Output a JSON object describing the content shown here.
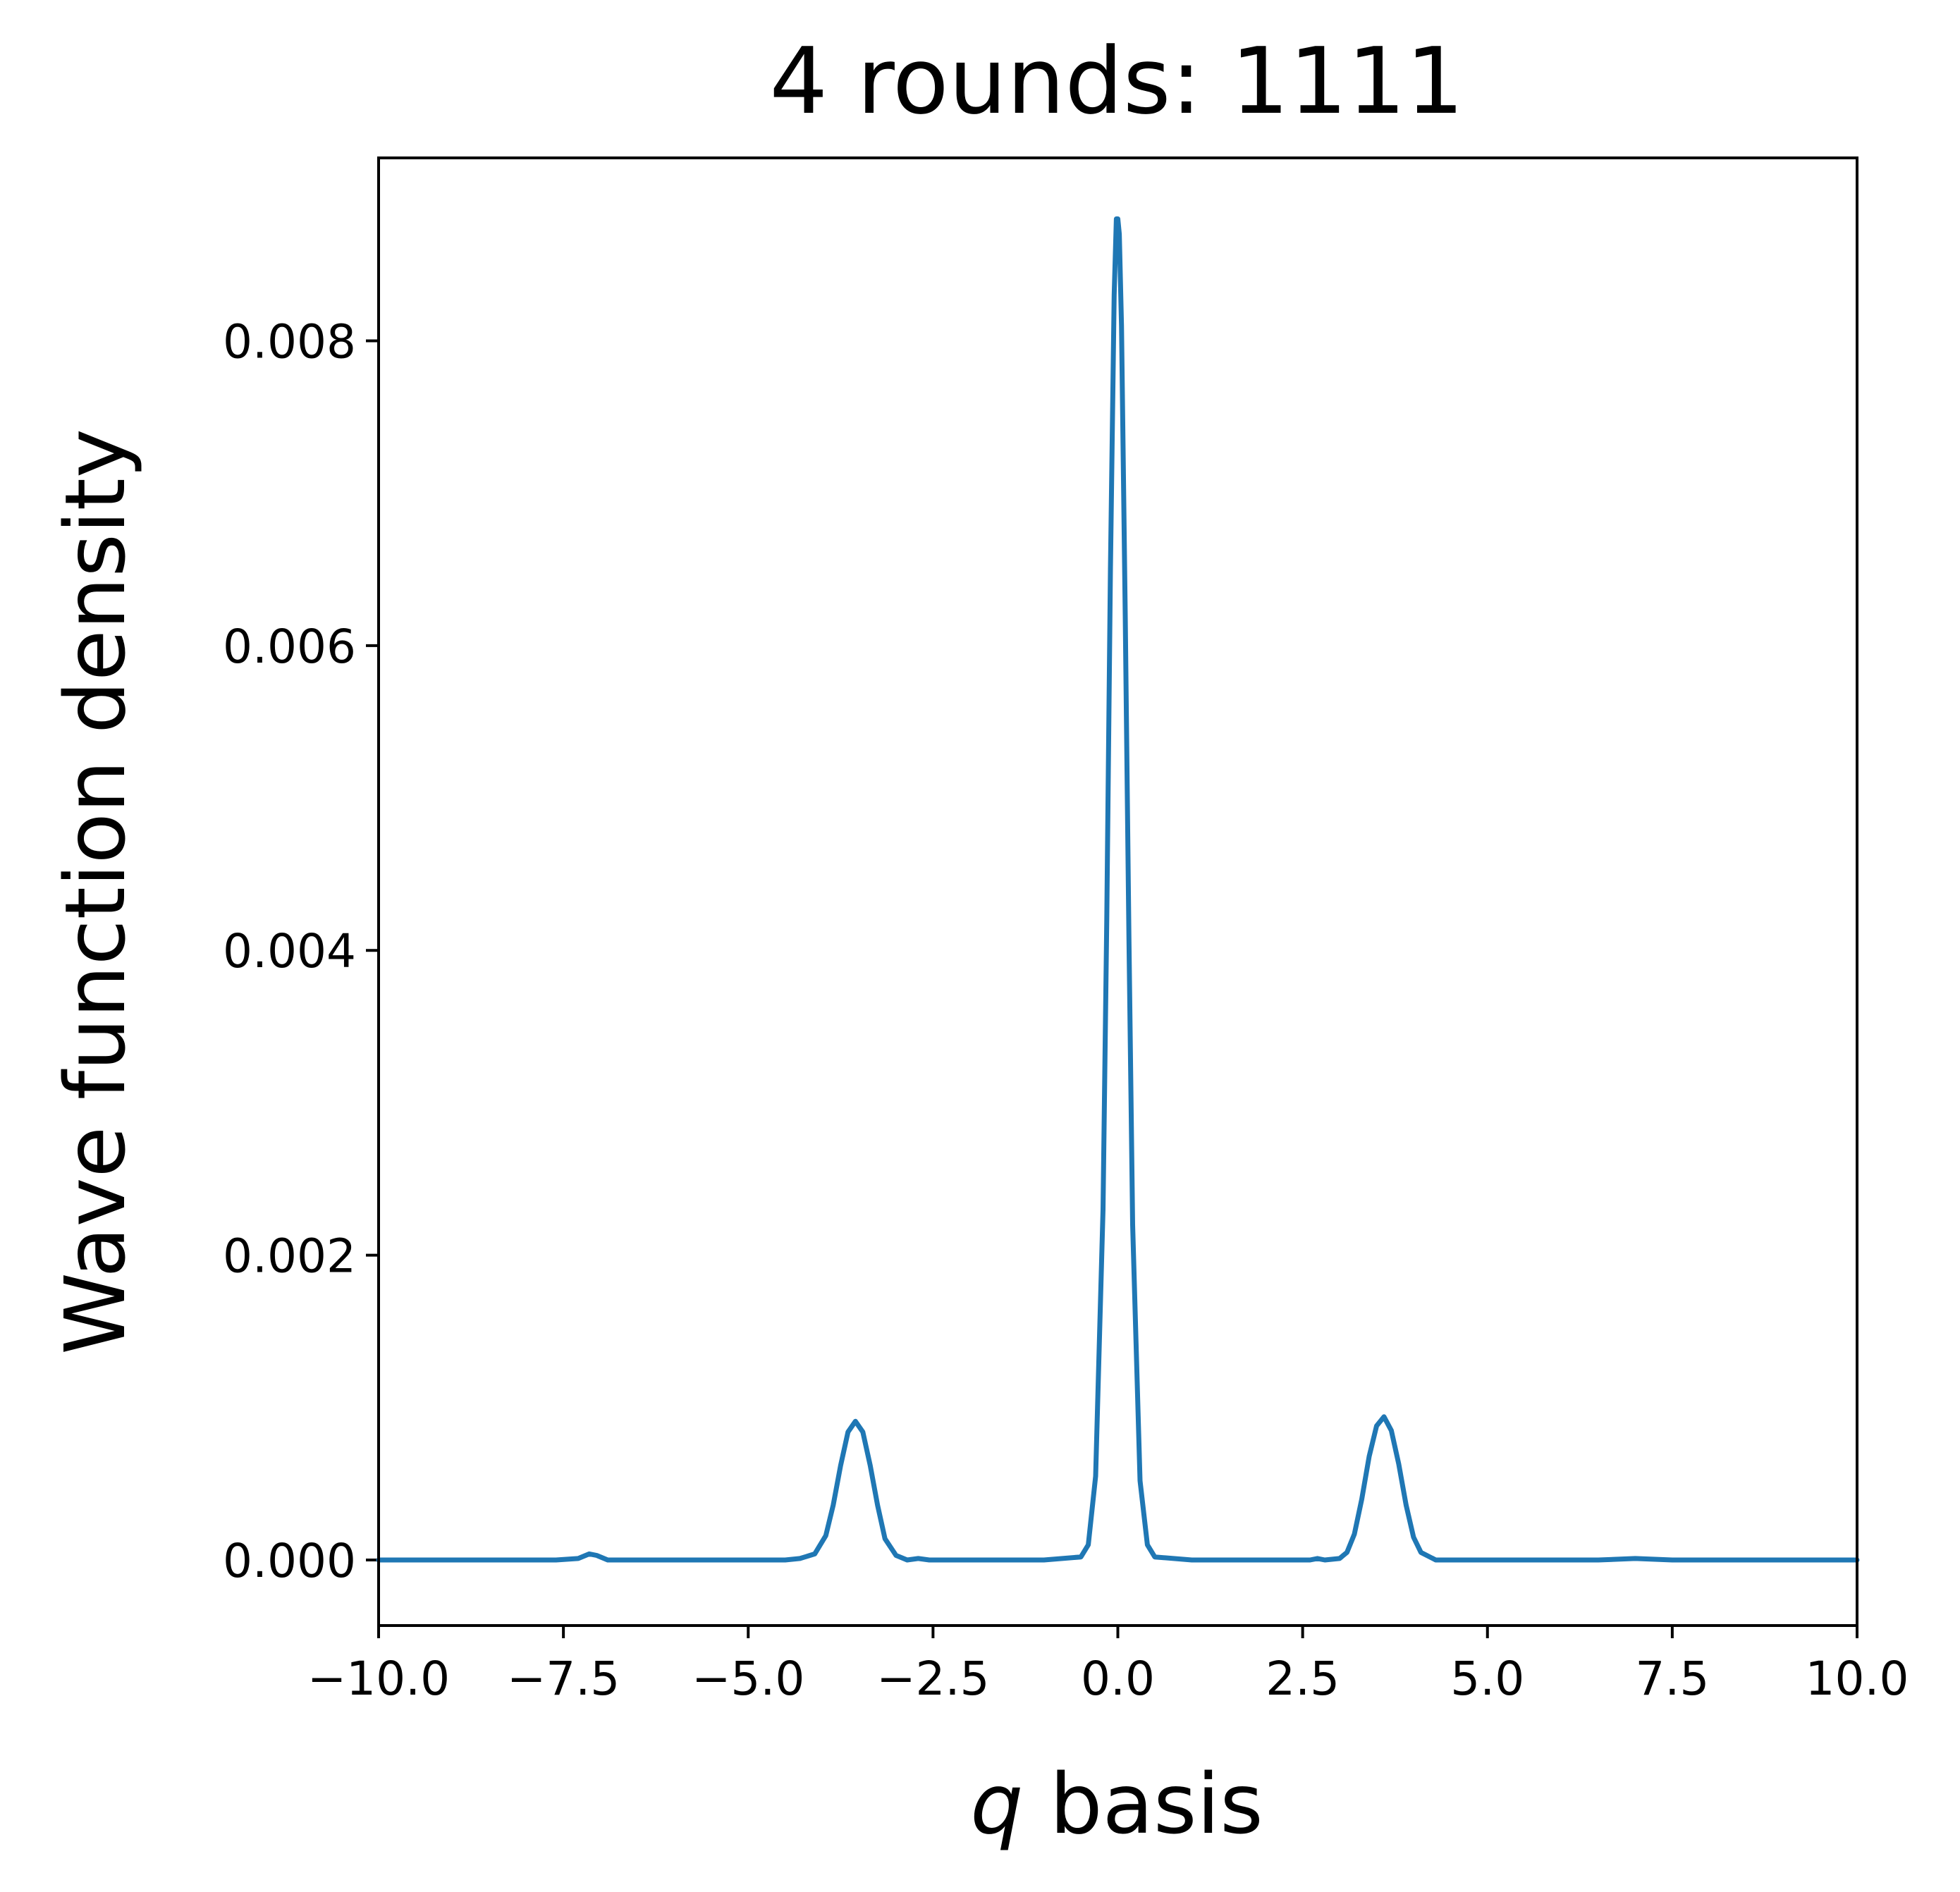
{
  "chart_data": {
    "type": "line",
    "title": "4 rounds: 1111",
    "xlabel_var": "q",
    "xlabel_rest": " basis",
    "ylabel": "Wave function density",
    "xlim": [
      -10.0,
      10.0
    ],
    "ylim": [
      -0.00043,
      0.0092
    ],
    "xticks": [
      -10.0,
      -7.5,
      -5.0,
      -2.5,
      0.0,
      2.5,
      5.0,
      7.5,
      10.0
    ],
    "xtick_labels": [
      "−10.0",
      "−7.5",
      "−5.0",
      "−2.5",
      "0.0",
      "2.5",
      "5.0",
      "7.5",
      "10.0"
    ],
    "yticks": [
      0.0,
      0.002,
      0.004,
      0.006,
      0.008
    ],
    "ytick_labels": [
      "0.000",
      "0.002",
      "0.004",
      "0.006",
      "0.008"
    ],
    "grid": false,
    "series": [
      {
        "color": "#1f77b4",
        "x": [
          -10.0,
          -7.6,
          -7.3,
          -7.15,
          -7.05,
          -6.9,
          -6.75,
          -6.5,
          -4.5,
          -4.3,
          -4.1,
          -3.95,
          -3.85,
          -3.75,
          -3.65,
          -3.55,
          -3.45,
          -3.35,
          -3.25,
          -3.15,
          -3.0,
          -2.85,
          -2.7,
          -2.55,
          -2.4,
          -2.0,
          -1.0,
          -0.5,
          -0.4,
          -0.3,
          -0.2,
          -0.15,
          -0.1,
          -0.05,
          -0.02,
          0.0,
          0.02,
          0.05,
          0.1,
          0.15,
          0.2,
          0.3,
          0.4,
          0.5,
          1.0,
          2.0,
          2.6,
          2.7,
          2.8,
          3.0,
          3.1,
          3.2,
          3.3,
          3.4,
          3.5,
          3.6,
          3.7,
          3.8,
          3.9,
          4.0,
          4.1,
          4.3,
          5.0,
          6.5,
          7.0,
          7.5,
          10.0
        ],
        "y": [
          0.0,
          0.0,
          1e-05,
          4e-05,
          3e-05,
          0.0,
          0.0,
          0.0,
          0.0,
          1e-05,
          4e-05,
          0.00016,
          0.00036,
          0.00062,
          0.00084,
          0.00091,
          0.00084,
          0.00062,
          0.00036,
          0.00014,
          3e-05,
          0.0,
          1e-05,
          0.0,
          0.0,
          0.0,
          0.0,
          2e-05,
          0.0001,
          0.00055,
          0.0023,
          0.0042,
          0.0065,
          0.0083,
          0.0088,
          0.0088,
          0.0087,
          0.0081,
          0.0062,
          0.0041,
          0.0022,
          0.00052,
          0.0001,
          2e-05,
          0.0,
          0.0,
          0.0,
          1e-05,
          0.0,
          1e-05,
          5e-05,
          0.00017,
          0.0004,
          0.00068,
          0.00088,
          0.00094,
          0.00085,
          0.00063,
          0.00036,
          0.00015,
          5e-05,
          0.0,
          0.0,
          0.0,
          1e-05,
          0.0,
          0.0
        ]
      }
    ]
  }
}
